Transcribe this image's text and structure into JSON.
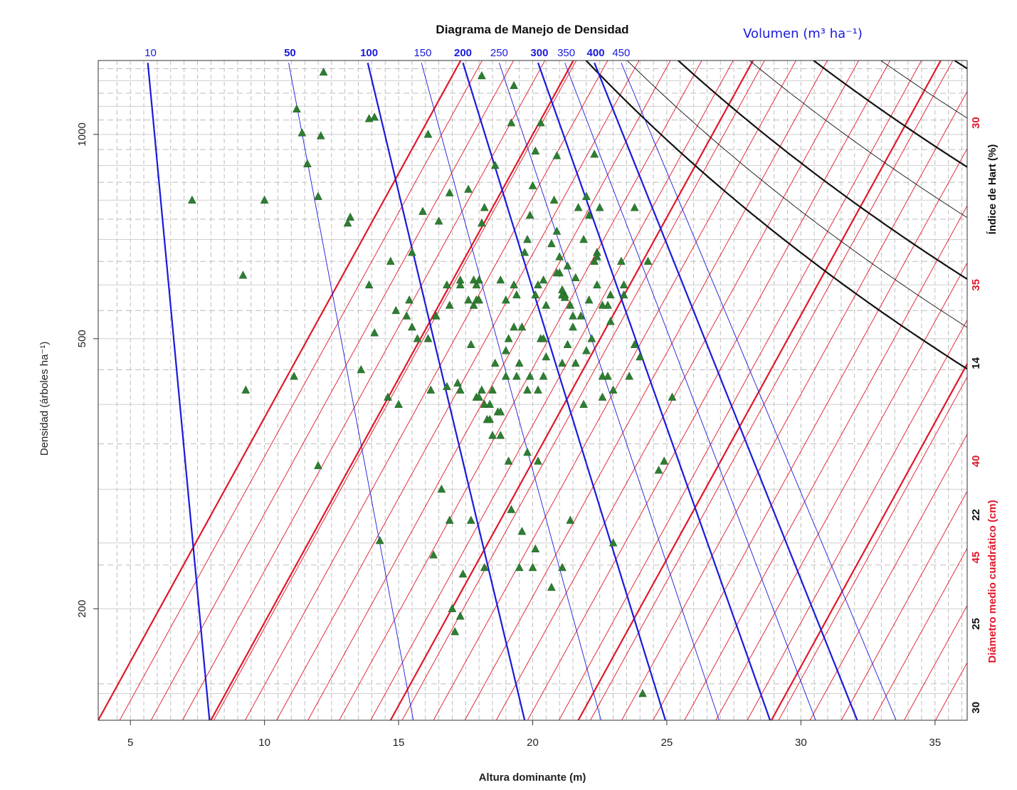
{
  "chart_data": {
    "type": "scatter",
    "title": "Diagrama de Manejo de Densidad",
    "volume_label": "Volumen (m³ ha⁻¹)",
    "xlabel": "Altura dominante (m)",
    "ylabel": "Densidad (árboles ha⁻¹)",
    "right_label_hart": "Índice de Hart (%)",
    "right_label_dq": "Diámetro medio cuadrático (cm)",
    "xlim": [
      3.8,
      36.2
    ],
    "ylim_log": [
      137,
      1285
    ],
    "x_ticks": [
      5,
      10,
      15,
      20,
      25,
      30,
      35
    ],
    "y_ticks": [
      200,
      500,
      1000
    ],
    "y_gridlines_solid": [
      150,
      200,
      250,
      300,
      400,
      500,
      600,
      700,
      800,
      900,
      1000,
      1100,
      1200
    ],
    "y_gridlines_dashed": [
      155,
      232,
      350,
      450,
      550,
      650,
      750,
      850,
      950,
      1050,
      1150,
      1250
    ],
    "x_gridlines_dashed": [
      4.5,
      5.5,
      6,
      6.5,
      7,
      7.5,
      8,
      8.5,
      9,
      9.5,
      10.5,
      11,
      11.5,
      12,
      12.5,
      13,
      13.5,
      14,
      14.5,
      15.5,
      16,
      16.5,
      17,
      17.5,
      18,
      18.5,
      19,
      19.5,
      20.5,
      21,
      21.5,
      22,
      22.5,
      23,
      23.5,
      24,
      24.5,
      25.5,
      26,
      26.5,
      27,
      27.5,
      28,
      28.5,
      29,
      29.5,
      30.5,
      31,
      31.5,
      32,
      32.5,
      33,
      33.5,
      34,
      34.5,
      35.5,
      36
    ],
    "volume_lines": [
      {
        "label": "10",
        "bold": true,
        "top": [
          5.65,
          1275
        ],
        "bottom": [
          7.95,
          137
        ],
        "labelX": 5.75
      },
      {
        "label": "50",
        "bold": false,
        "top": [
          10.9,
          1275
        ],
        "bottom": [
          15.55,
          137
        ],
        "labelX": 10.95
      },
      {
        "label": "100",
        "bold": true,
        "top": [
          13.85,
          1275
        ],
        "bottom": [
          19.7,
          137
        ],
        "labelX": 13.9
      },
      {
        "label": "150",
        "bold": false,
        "top": [
          15.85,
          1275
        ],
        "bottom": [
          22.55,
          137
        ],
        "labelX": 15.9
      },
      {
        "label": "200",
        "bold": true,
        "top": [
          17.4,
          1275
        ],
        "bottom": [
          24.95,
          137
        ],
        "labelX": 17.4
      },
      {
        "label": "250",
        "bold": false,
        "top": [
          18.75,
          1275
        ],
        "bottom": [
          26.95,
          137
        ],
        "labelX": 18.75
      },
      {
        "label": "300",
        "bold": true,
        "top": [
          20.2,
          1275
        ],
        "bottom": [
          28.85,
          137
        ],
        "labelX": 20.25
      },
      {
        "label": "350",
        "bold": false,
        "top": [
          21.2,
          1275
        ],
        "bottom": [
          30.55,
          137
        ],
        "labelX": 21.25
      },
      {
        "label": "400",
        "bold": true,
        "top": [
          22.3,
          1275
        ],
        "bottom": [
          32.1,
          137
        ],
        "labelX": 22.35
      },
      {
        "label": "450",
        "bold": false,
        "top": [
          23.3,
          1275
        ],
        "bottom": [
          33.55,
          137
        ],
        "labelX": 23.3
      }
    ],
    "volume_label_bold": [
      "50",
      "100",
      "200",
      "300",
      "400"
    ],
    "hart_curves": [
      {
        "label": "14",
        "bold": true,
        "C": 2890
      },
      {
        "label": "",
        "bold": false,
        "C": 2620
      },
      {
        "label": "22",
        "bold": true,
        "C": 2350
      },
      {
        "label": "",
        "bold": false,
        "C": 2100
      },
      {
        "label": "25",
        "bold": true,
        "C": 1920
      },
      {
        "label": "",
        "bold": false,
        "C": 1760
      },
      {
        "label": "",
        "bold": true,
        "C": 1615
      },
      {
        "label": "",
        "bold": false,
        "C": 1480
      },
      {
        "label": "30",
        "bold": true,
        "C": 1365
      },
      {
        "label": "",
        "bold": false,
        "C": 1255
      },
      {
        "label": "",
        "bold": true,
        "C": 1155
      },
      {
        "label": "",
        "bold": false,
        "C": 1060
      },
      {
        "label": "",
        "bold": true,
        "C": 955
      },
      {
        "label": "",
        "bold": false,
        "C": 880
      },
      {
        "label": "",
        "bold": true,
        "C": 820
      }
    ],
    "hart_exponent": 1.1,
    "dq_lines": [
      {
        "label": "",
        "bold": true,
        "x_at_bottom": 3.8,
        "slope": 1.0
      },
      {
        "label": "",
        "bold": true,
        "x_at_bottom": 8.0,
        "slope": 1.0
      },
      {
        "label": "",
        "bold": true,
        "x_at_bottom": 14.7,
        "slope": 1.0
      },
      {
        "label": "",
        "bold": true,
        "x_at_bottom": 21.7,
        "slope": 1.0
      },
      {
        "label": "",
        "bold": true,
        "x_at_bottom": 28.9,
        "slope": 1.0
      }
    ],
    "dq_thin_count": 34,
    "dq_thin_start": 4.6,
    "dq_thin_step": 1.17,
    "dq_slope_factor": 1.82,
    "right_red_ticks": [
      {
        "label": "30",
        "y": 1040
      },
      {
        "label": "35",
        "y": 600
      },
      {
        "label": "40",
        "y": 330
      },
      {
        "label": "45",
        "y": 238
      }
    ],
    "right_black_ticks": [
      {
        "label": "14",
        "y": 460
      },
      {
        "label": "22",
        "y": 275
      },
      {
        "label": "25",
        "y": 190
      },
      {
        "label": "30",
        "y": 143
      }
    ],
    "points": [
      [
        7.3,
        800
      ],
      [
        9.2,
        620
      ],
      [
        9.3,
        420
      ],
      [
        10.0,
        800
      ],
      [
        11.2,
        1090
      ],
      [
        11.4,
        1005
      ],
      [
        11.6,
        905
      ],
      [
        12.0,
        810
      ],
      [
        12.1,
        995
      ],
      [
        12.2,
        1235
      ],
      [
        11.1,
        440
      ],
      [
        12.0,
        325
      ],
      [
        13.1,
        740
      ],
      [
        13.2,
        755
      ],
      [
        13.6,
        450
      ],
      [
        13.9,
        600
      ],
      [
        13.9,
        1055
      ],
      [
        14.1,
        1060
      ],
      [
        14.1,
        510
      ],
      [
        14.3,
        252
      ],
      [
        14.6,
        410
      ],
      [
        14.7,
        650
      ],
      [
        14.9,
        550
      ],
      [
        15.0,
        400
      ],
      [
        15.3,
        540
      ],
      [
        15.5,
        670
      ],
      [
        15.4,
        570
      ],
      [
        15.7,
        500
      ],
      [
        15.5,
        520
      ],
      [
        16.1,
        500
      ],
      [
        16.1,
        1000
      ],
      [
        15.9,
        770
      ],
      [
        16.2,
        420
      ],
      [
        16.4,
        540
      ],
      [
        16.5,
        745
      ],
      [
        16.6,
        300
      ],
      [
        16.8,
        600
      ],
      [
        16.8,
        425
      ],
      [
        16.9,
        560
      ],
      [
        17.2,
        430
      ],
      [
        17.3,
        420
      ],
      [
        17.3,
        600
      ],
      [
        16.9,
        820
      ],
      [
        17.3,
        610
      ],
      [
        17.6,
        570
      ],
      [
        17.7,
        490
      ],
      [
        17.6,
        830
      ],
      [
        17.8,
        610
      ],
      [
        17.9,
        410
      ],
      [
        17.8,
        560
      ],
      [
        17.9,
        570
      ],
      [
        18.0,
        410
      ],
      [
        18.1,
        420
      ],
      [
        18.2,
        400
      ],
      [
        17.9,
        600
      ],
      [
        18.0,
        570
      ],
      [
        18.1,
        740
      ],
      [
        18.3,
        380
      ],
      [
        18.4,
        380
      ],
      [
        18.5,
        360
      ],
      [
        18.0,
        610
      ],
      [
        18.2,
        780
      ],
      [
        18.5,
        420
      ],
      [
        18.6,
        460
      ],
      [
        18.7,
        390
      ],
      [
        18.8,
        610
      ],
      [
        18.8,
        360
      ],
      [
        19.0,
        480
      ],
      [
        19.0,
        570
      ],
      [
        19.1,
        500
      ],
      [
        19.0,
        440
      ],
      [
        19.3,
        600
      ],
      [
        19.4,
        580
      ],
      [
        19.5,
        460
      ],
      [
        19.3,
        520
      ],
      [
        19.1,
        330
      ],
      [
        19.4,
        440
      ],
      [
        19.6,
        520
      ],
      [
        19.8,
        340
      ],
      [
        19.9,
        440
      ],
      [
        19.7,
        670
      ],
      [
        19.8,
        700
      ],
      [
        19.9,
        760
      ],
      [
        20.0,
        840
      ],
      [
        20.2,
        420
      ],
      [
        20.3,
        500
      ],
      [
        20.1,
        580
      ],
      [
        20.2,
        330
      ],
      [
        20.4,
        610
      ],
      [
        20.5,
        470
      ],
      [
        20.4,
        500
      ],
      [
        20.7,
        690
      ],
      [
        20.8,
        800
      ],
      [
        21.0,
        660
      ],
      [
        21.1,
        580
      ],
      [
        21.2,
        580
      ],
      [
        21.3,
        490
      ],
      [
        21.5,
        540
      ],
      [
        21.6,
        460
      ],
      [
        21.7,
        780
      ],
      [
        22.0,
        810
      ],
      [
        21.8,
        540
      ],
      [
        22.1,
        760
      ],
      [
        22.3,
        650
      ],
      [
        22.5,
        780
      ],
      [
        22.8,
        560
      ],
      [
        22.9,
        580
      ],
      [
        22.0,
        480
      ],
      [
        22.2,
        500
      ],
      [
        21.4,
        270
      ],
      [
        21.1,
        580
      ],
      [
        21.0,
        625
      ],
      [
        20.9,
        720
      ],
      [
        22.6,
        410
      ],
      [
        22.8,
        440
      ],
      [
        22.6,
        440
      ],
      [
        23.0,
        420
      ],
      [
        23.3,
        650
      ],
      [
        23.4,
        600
      ],
      [
        23.6,
        440
      ],
      [
        23.8,
        490
      ],
      [
        24.0,
        470
      ],
      [
        24.1,
        150
      ],
      [
        24.7,
        320
      ],
      [
        24.9,
        330
      ],
      [
        25.2,
        410
      ],
      [
        24.3,
        650
      ],
      [
        23.8,
        780
      ],
      [
        23.0,
        250
      ],
      [
        21.1,
        230
      ],
      [
        20.7,
        215
      ],
      [
        20.1,
        245
      ],
      [
        20.0,
        230
      ],
      [
        19.6,
        260
      ],
      [
        19.5,
        230
      ],
      [
        19.2,
        280
      ],
      [
        18.2,
        230
      ],
      [
        17.4,
        225
      ],
      [
        17.1,
        185
      ],
      [
        17.3,
        195
      ],
      [
        17.0,
        200
      ],
      [
        16.9,
        270
      ],
      [
        16.3,
        240
      ],
      [
        17.7,
        270
      ],
      [
        18.1,
        1220
      ],
      [
        18.6,
        900
      ],
      [
        19.2,
        1040
      ],
      [
        19.3,
        1180
      ],
      [
        20.3,
        1040
      ],
      [
        20.1,
        945
      ],
      [
        20.9,
        930
      ],
      [
        22.3,
        935
      ],
      [
        21.3,
        640
      ],
      [
        21.2,
        575
      ],
      [
        21.1,
        590
      ],
      [
        20.5,
        560
      ],
      [
        20.2,
        600
      ],
      [
        22.4,
        600
      ],
      [
        22.6,
        560
      ],
      [
        22.9,
        530
      ],
      [
        23.4,
        580
      ],
      [
        21.9,
        400
      ],
      [
        21.1,
        460
      ],
      [
        20.4,
        440
      ],
      [
        19.8,
        420
      ],
      [
        18.4,
        400
      ],
      [
        18.8,
        390
      ],
      [
        21.6,
        615
      ],
      [
        21.9,
        700
      ],
      [
        22.4,
        670
      ],
      [
        22.4,
        660
      ],
      [
        20.9,
        625
      ],
      [
        21.4,
        560
      ],
      [
        21.5,
        520
      ],
      [
        22.1,
        570
      ]
    ]
  }
}
